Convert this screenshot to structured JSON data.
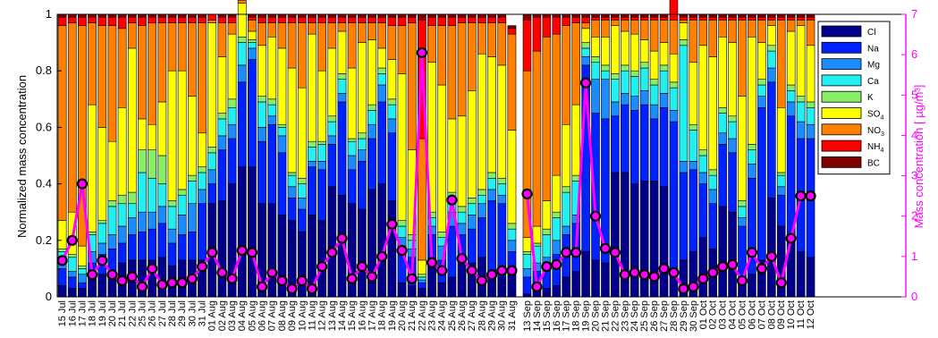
{
  "chart_data": {
    "type": "bar",
    "stacked": true,
    "normalized": true,
    "ylabel": "Normalized mass concentration",
    "y2label": "Mass concentration [  µg/m³]",
    "ylim": [
      0,
      1
    ],
    "y2lim": [
      0,
      7
    ],
    "yticks": [
      "0",
      "0.2",
      "0.4",
      "0.6",
      "0.8",
      "1"
    ],
    "y2ticks": [
      "0",
      "1",
      "2",
      "3",
      "4",
      "5",
      "6",
      "7"
    ],
    "legend_position": "top-right",
    "series_colors": {
      "Cl": "#00008b",
      "Na": "#0022ff",
      "Mg": "#1a8cff",
      "Ca": "#22f0f0",
      "K": "#88ee66",
      "SO4": "#ffff00",
      "NO3": "#ff7f00",
      "NH4": "#ff0000",
      "BC": "#800000",
      "mass": "#ff00ff"
    },
    "legend": [
      {
        "key": "Cl",
        "label": "Cl",
        "sub": ""
      },
      {
        "key": "Na",
        "label": "Na",
        "sub": ""
      },
      {
        "key": "Mg",
        "label": "Mg",
        "sub": ""
      },
      {
        "key": "Ca",
        "label": "Ca",
        "sub": ""
      },
      {
        "key": "K",
        "label": "K",
        "sub": ""
      },
      {
        "key": "SO4",
        "label": "SO",
        "sub": "4"
      },
      {
        "key": "NO3",
        "label": "NO",
        "sub": "3"
      },
      {
        "key": "NH4",
        "label": "NH",
        "sub": "4"
      },
      {
        "key": "BC",
        "label": "BC",
        "sub": ""
      }
    ],
    "panels": [
      {
        "categories": [
          "15 Jul",
          "16 Jul",
          "17 Jul",
          "18 Jul",
          "19 Jul",
          "20 Jul",
          "21 Jul",
          "22 Jul",
          "25 Jul",
          "26 Jul",
          "27 Jul",
          "28 Jul",
          "29 Jul",
          "30 Jul",
          "31 Jul",
          "01 Aug",
          "02 Aug",
          "03 Aug",
          "04 Aug",
          "05 Aug",
          "06 Aug",
          "07 Aug",
          "08 Aug",
          "09 Aug",
          "10 Aug",
          "11 Aug",
          "12 Aug",
          "13 Aug",
          "14 Aug",
          "15 Aug",
          "16 Aug",
          "17 Aug",
          "18 Aug",
          "19 Aug",
          "20 Aug",
          "21 Aug",
          "22 Aug",
          "23 Aug",
          "24 Aug",
          "25 Aug",
          "26 Aug",
          "27 Aug",
          "28 Aug",
          "29 Aug",
          "30 Aug",
          "31 Aug"
        ],
        "mass": [
          0.9,
          1.4,
          2.8,
          0.55,
          0.9,
          0.55,
          0.4,
          0.5,
          0.25,
          0.7,
          0.3,
          0.35,
          0.35,
          0.45,
          0.75,
          1.1,
          0.6,
          0.45,
          1.15,
          1.1,
          0.25,
          0.6,
          0.4,
          0.2,
          0.4,
          0.2,
          0.75,
          1.1,
          1.45,
          0.45,
          0.75,
          0.5,
          1.0,
          1.8,
          1.15,
          0.45,
          6.05,
          0.85,
          0.65,
          2.4,
          0.95,
          0.65,
          0.4,
          0.55,
          0.65,
          0.65
        ],
        "stacks": {
          "Cl": [
            0.04,
            0.03,
            0.03,
            0.07,
            0.08,
            0.09,
            0.12,
            0.13,
            0.13,
            0.13,
            0.14,
            0.11,
            0.13,
            0.13,
            0.13,
            0.33,
            0.34,
            0.4,
            0.46,
            0.46,
            0.33,
            0.33,
            0.29,
            0.27,
            0.23,
            0.29,
            0.27,
            0.39,
            0.36,
            0.33,
            0.31,
            0.38,
            0.4,
            0.34,
            0.05,
            0.04,
            0.03,
            0.13,
            0.05,
            0.07,
            0.13,
            0.12,
            0.14,
            0.08,
            0.07,
            0.08
          ],
          "Na": [
            0.06,
            0.04,
            0.02,
            0.05,
            0.07,
            0.08,
            0.07,
            0.09,
            0.1,
            0.11,
            0.12,
            0.08,
            0.09,
            0.1,
            0.2,
            0.07,
            0.18,
            0.16,
            0.3,
            0.38,
            0.22,
            0.28,
            0.22,
            0.08,
            0.08,
            0.17,
            0.18,
            0.15,
            0.33,
            0.12,
            0.17,
            0.18,
            0.29,
            0.24,
            0.13,
            0.1,
            0.02,
            0.09,
            0.08,
            0.18,
            0.09,
            0.12,
            0.14,
            0.26,
            0.26,
            0.08
          ],
          "Mg": [
            0.04,
            0.02,
            0.03,
            0.04,
            0.04,
            0.05,
            0.06,
            0.06,
            0.07,
            0.06,
            0.06,
            0.05,
            0.07,
            0.1,
            0.05,
            0.05,
            0.05,
            0.05,
            0.06,
            0.04,
            0.05,
            0.03,
            0.06,
            0.04,
            0.04,
            0.02,
            0.03,
            0.03,
            0.03,
            0.05,
            0.04,
            0.05,
            0.06,
            0.05,
            0.03,
            0.03,
            0.01,
            0.03,
            0.05,
            0.05,
            0.04,
            0.05,
            0.05,
            0.04,
            0.03,
            0.04
          ],
          "Ca": [
            0.02,
            0.05,
            0.02,
            0.06,
            0.07,
            0.1,
            0.08,
            0.05,
            0.14,
            0.12,
            0.08,
            0.08,
            0.07,
            0.08,
            0.06,
            0.06,
            0.06,
            0.06,
            0.08,
            0.02,
            0.09,
            0.04,
            0.03,
            0.04,
            0.05,
            0.05,
            0.06,
            0.05,
            0.05,
            0.05,
            0.04,
            0.05,
            0.04,
            0.05,
            0.04,
            0.03,
            0.01,
            0.03,
            0.03,
            0.05,
            0.04,
            0.04,
            0.03,
            0.04,
            0.04,
            0.04
          ],
          "K": [
            0.01,
            0.01,
            0.01,
            0.01,
            0.01,
            0.02,
            0.03,
            0.04,
            0.08,
            0.1,
            0.1,
            0.02,
            0.02,
            0.02,
            0.02,
            0.02,
            0.02,
            0.03,
            0.02,
            0.01,
            0.02,
            0.02,
            0.01,
            0.01,
            0.02,
            0.02,
            0.01,
            0.02,
            0.02,
            0.01,
            0.02,
            0.02,
            0.02,
            0.02,
            0.02,
            0.02,
            0.01,
            0.02,
            0.02,
            0.02,
            0.02,
            0.02,
            0.02,
            0.02,
            0.02,
            0.02
          ],
          "SO4": [
            0.1,
            0.15,
            0.07,
            0.45,
            0.33,
            0.21,
            0.31,
            0.51,
            0.11,
            0.09,
            0.19,
            0.46,
            0.42,
            0.28,
            0.12,
            0.44,
            0.2,
            0.23,
            0.12,
            0.03,
            0.18,
            0.22,
            0.27,
            0.37,
            0.32,
            0.38,
            0.25,
            0.24,
            0.15,
            0.25,
            0.32,
            0.23,
            0.07,
            0.14,
            0.52,
            0.3,
            0.05,
            0.53,
            0.52,
            0.26,
            0.32,
            0.38,
            0.48,
            0.41,
            0.4,
            0.33
          ],
          "NO3": [
            0.69,
            0.67,
            0.78,
            0.29,
            0.36,
            0.41,
            0.28,
            0.09,
            0.33,
            0.36,
            0.28,
            0.17,
            0.17,
            0.26,
            0.39,
            0.01,
            0.12,
            0.04,
            0.01,
            0.04,
            0.08,
            0.05,
            0.09,
            0.16,
            0.23,
            0.04,
            0.17,
            0.09,
            0.03,
            0.16,
            0.07,
            0.06,
            0.09,
            0.12,
            0.17,
            0.45,
            0.43,
            0.13,
            0.21,
            0.33,
            0.33,
            0.24,
            0.11,
            0.12,
            0.15,
            0.34
          ],
          "NH4": [
            0.03,
            0.02,
            0.03,
            0.02,
            0.03,
            0.03,
            0.04,
            0.02,
            0.03,
            0.02,
            0.02,
            0.02,
            0.02,
            0.02,
            0.02,
            0.02,
            0.02,
            0.02,
            0.02,
            0.01,
            0.02,
            0.02,
            0.02,
            0.02,
            0.02,
            0.02,
            0.02,
            0.02,
            0.02,
            0.02,
            0.02,
            0.02,
            0.02,
            0.03,
            0.03,
            0.02,
            0.42,
            0.03,
            0.03,
            0.03,
            0.02,
            0.02,
            0.02,
            0.02,
            0.02,
            0.02
          ],
          "BC": [
            0.01,
            0.01,
            0.01,
            0.01,
            0.01,
            0.01,
            0.01,
            0.01,
            0.01,
            0.01,
            0.01,
            0.01,
            0.01,
            0.01,
            0.01,
            0.0,
            0.01,
            0.01,
            0.01,
            0.01,
            0.01,
            0.01,
            0.01,
            0.01,
            0.01,
            0.01,
            0.01,
            0.01,
            0.01,
            0.01,
            0.01,
            0.01,
            0.01,
            0.01,
            0.01,
            0.01,
            0.02,
            0.01,
            0.01,
            0.01,
            0.01,
            0.01,
            0.01,
            0.01,
            0.01,
            0.01
          ]
        }
      },
      {
        "categories": [
          "13 Sep",
          "14 Sep",
          "15 Sep",
          "16 Sep",
          "17 Sep",
          "18 Sep",
          "19 Sep",
          "20 Sep",
          "21 Sep",
          "22 Sep",
          "23 Sep",
          "24 Sep",
          "25 Sep",
          "26 Sep",
          "27 Sep",
          "28 Sep",
          "29 Sep",
          "30 Sep",
          "01 Oct",
          "02 Oct",
          "03 Oct",
          "04 Oct",
          "05 Oct",
          "06 Oct",
          "07 Oct",
          "08 Oct",
          "09 Oct",
          "10 Oct",
          "11 Oct",
          "12 Oct"
        ],
        "mass": [
          2.55,
          0.25,
          0.75,
          0.8,
          1.1,
          1.1,
          5.3,
          2.0,
          1.2,
          1.1,
          0.55,
          0.6,
          0.55,
          0.5,
          0.7,
          0.6,
          0.2,
          0.25,
          0.45,
          0.6,
          0.75,
          0.8,
          0.4,
          1.1,
          0.7,
          1.0,
          0.35,
          1.45,
          2.5,
          2.5
        ],
        "stacks": {
          "Cl": [
            0.01,
            0.02,
            0.03,
            0.04,
            0.07,
            0.09,
            0.16,
            0.13,
            0.12,
            0.44,
            0.44,
            0.4,
            0.41,
            0.41,
            0.39,
            0.1,
            0.13,
            0.16,
            0.21,
            0.17,
            0.32,
            0.3,
            0.05,
            0.08,
            0.13,
            0.35,
            0.25,
            0.22,
            0.16,
            0.14
          ],
          "Na": [
            0.06,
            0.07,
            0.07,
            0.11,
            0.15,
            0.17,
            0.66,
            0.52,
            0.51,
            0.2,
            0.24,
            0.26,
            0.27,
            0.22,
            0.28,
            0.52,
            0.31,
            0.29,
            0.19,
            0.16,
            0.22,
            0.21,
            0.2,
            0.34,
            0.54,
            0.41,
            0.11,
            0.42,
            0.4,
            0.42
          ],
          "Mg": [
            0.03,
            0.03,
            0.04,
            0.05,
            0.03,
            0.03,
            0.03,
            0.12,
            0.14,
            0.05,
            0.04,
            0.05,
            0.05,
            0.05,
            0.05,
            0.04,
            0.04,
            0.03,
            0.04,
            0.05,
            0.04,
            0.05,
            0.03,
            0.05,
            0.04,
            0.05,
            0.03,
            0.05,
            0.06,
            0.05
          ],
          "Ca": [
            0.05,
            0.06,
            0.08,
            0.08,
            0.12,
            0.12,
            0.03,
            0.06,
            0.03,
            0.08,
            0.08,
            0.07,
            0.08,
            0.07,
            0.08,
            0.08,
            0.41,
            0.11,
            0.06,
            0.05,
            0.07,
            0.06,
            0.04,
            0.05,
            0.04,
            0.06,
            0.04,
            0.04,
            0.07,
            0.06
          ],
          "K": [
            0.01,
            0.01,
            0.02,
            0.02,
            0.02,
            0.02,
            0.02,
            0.02,
            0.02,
            0.02,
            0.02,
            0.02,
            0.02,
            0.02,
            0.02,
            0.02,
            0.02,
            0.02,
            0.02,
            0.02,
            0.02,
            0.02,
            0.02,
            0.02,
            0.02,
            0.02,
            0.01,
            0.02,
            0.02,
            0.02
          ],
          "SO4": [
            0.05,
            0.06,
            0.1,
            0.13,
            0.22,
            0.25,
            0.05,
            0.07,
            0.1,
            0.17,
            0.12,
            0.13,
            0.08,
            0.1,
            0.08,
            0.1,
            0.06,
            0.22,
            0.37,
            0.4,
            0.25,
            0.26,
            0.37,
            0.38,
            0.13,
            0.07,
            0.23,
            0.19,
            0.25,
            0.2
          ],
          "NO3": [
            0.59,
            0.62,
            0.58,
            0.5,
            0.35,
            0.29,
            0.02,
            0.06,
            0.06,
            0.02,
            0.04,
            0.05,
            0.07,
            0.11,
            0.08,
            0.12,
            0.01,
            0.15,
            0.09,
            0.13,
            0.06,
            0.08,
            0.27,
            0.06,
            0.08,
            0.02,
            0.31,
            0.04,
            0.02,
            0.09
          ],
          "NH4": [
            0.18,
            0.12,
            0.07,
            0.06,
            0.03,
            0.02,
            0.02,
            0.01,
            0.01,
            0.01,
            0.01,
            0.01,
            0.01,
            0.01,
            0.01,
            0.1,
            0.01,
            0.01,
            0.01,
            0.01,
            0.01,
            0.01,
            0.01,
            0.01,
            0.01,
            0.01,
            0.01,
            0.01,
            0.01,
            0.01
          ],
          "BC": [
            0.02,
            0.01,
            0.01,
            0.01,
            0.01,
            0.01,
            0.01,
            0.01,
            0.01,
            0.01,
            0.01,
            0.01,
            0.01,
            0.01,
            0.01,
            0.01,
            0.01,
            0.01,
            0.01,
            0.01,
            0.01,
            0.01,
            0.01,
            0.01,
            0.01,
            0.01,
            0.01,
            0.01,
            0.01,
            0.01
          ]
        }
      }
    ]
  }
}
